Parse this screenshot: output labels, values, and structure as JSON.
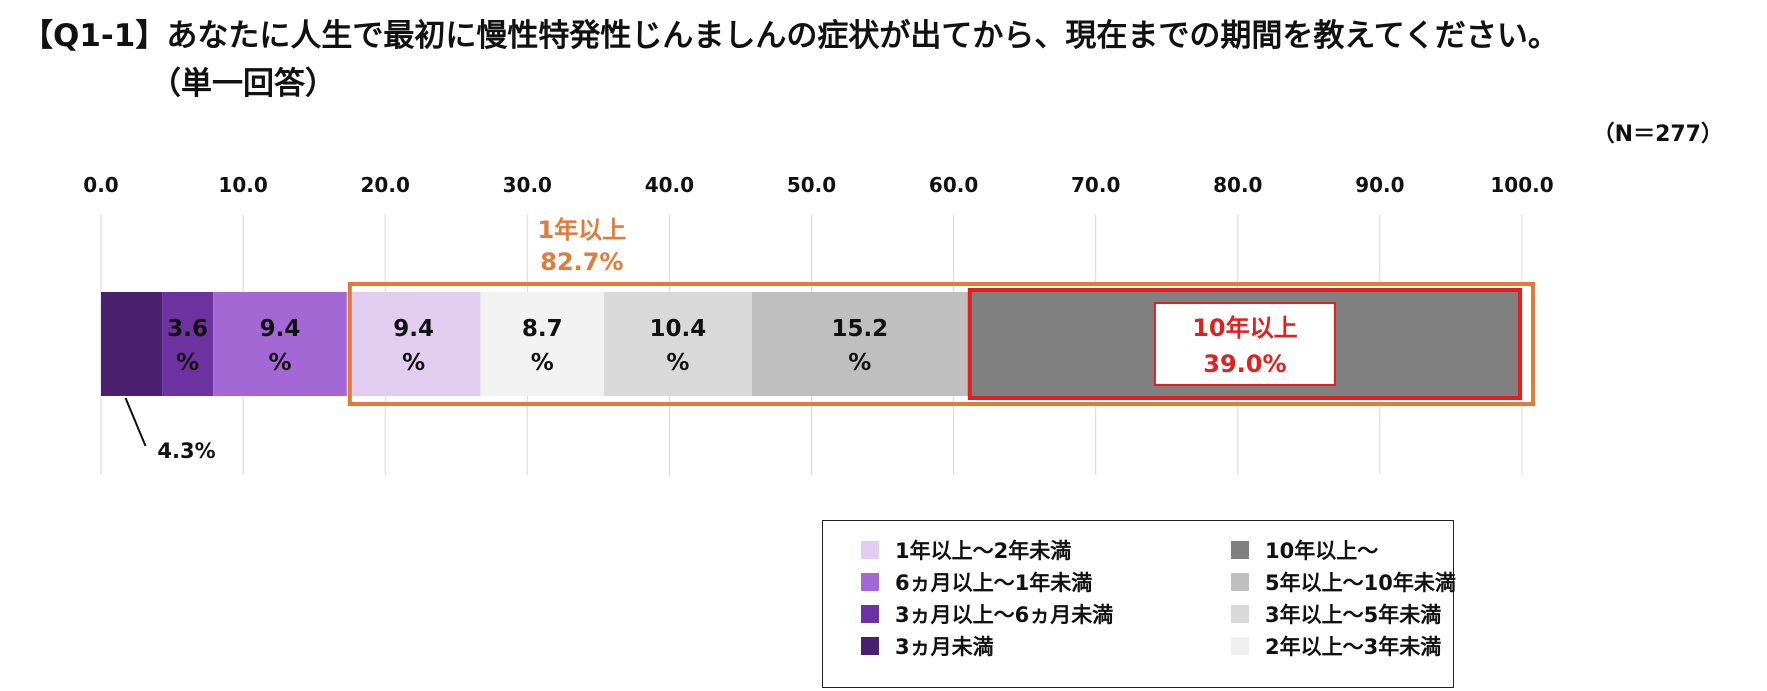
{
  "title": "【Q1-1】あなたに人生で最初に慢性特発性じんましんの症状が出てから、現在までの期間を教えてください。",
  "subtitle": "（単一回答）",
  "n_label": "（N＝277）",
  "chart_data": {
    "type": "bar",
    "orientation": "horizontal-stacked",
    "title": "【Q1-1】あなたに人生で最初に慢性特発性じんましんの症状が出てから、現在までの期間を教えてください。",
    "subtitle": "（単一回答）",
    "xlim": [
      0,
      100
    ],
    "ticks": [
      "0.0",
      "10.0",
      "20.0",
      "30.0",
      "40.0",
      "50.0",
      "60.0",
      "70.0",
      "80.0",
      "90.0",
      "100.0"
    ],
    "grid": true,
    "legend_position": "bottom-right",
    "series": [
      {
        "name": "3ヵ月未満",
        "value": 4.3,
        "label": "4.3%",
        "color": "#4a1f6e"
      },
      {
        "name": "3ヵ月以上～6ヵ月未満",
        "value": 3.6,
        "label": "3.6\n%",
        "color": "#6b32a0"
      },
      {
        "name": "6ヵ月以上～1年未満",
        "value": 9.4,
        "label": "9.4\n%",
        "color": "#a468d4"
      },
      {
        "name": "1年以上～2年未満",
        "value": 9.4,
        "label": "9.4\n%",
        "color": "#e2cdf0"
      },
      {
        "name": "2年以上～3年未満",
        "value": 8.7,
        "label": "8.7\n%",
        "color": "#f2f2f2"
      },
      {
        "name": "3年以上～5年未満",
        "value": 10.4,
        "label": "10.4\n%",
        "color": "#d9d9d9"
      },
      {
        "name": "5年以上～10年未満",
        "value": 15.2,
        "label": "15.2\n%",
        "color": "#bfbfbf"
      },
      {
        "name": "10年以上～",
        "value": 39.0,
        "label": "",
        "color": "#808080"
      }
    ],
    "annotations": [
      {
        "label": "1年以上",
        "value": "82.7%",
        "color": "#e07b39"
      },
      {
        "label": "10年以上",
        "value": "39.0%",
        "color": "#e0211f"
      }
    ],
    "legend_order": [
      "1年以上～2年未満",
      "10年以上～",
      "6ヵ月以上～1年未満",
      "5年以上～10年未満",
      "3ヵ月以上～6ヵ月未満",
      "3年以上～5年未満",
      "3ヵ月未満",
      "2年以上～3年未満"
    ]
  }
}
